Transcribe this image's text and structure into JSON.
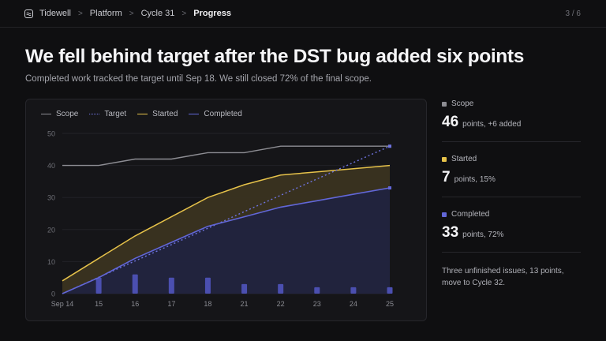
{
  "breadcrumb": {
    "app": "Tidewell",
    "items": [
      "Platform",
      "Cycle 31",
      "Progress"
    ],
    "pager": "3 / 6"
  },
  "headline": "We fell behind target after the DST bug added six points",
  "subtitle": "Completed work tracked the target until Sep 18. We still closed 72% of the final scope.",
  "colors": {
    "scope": "#8d8d93",
    "target": "#6f74e0",
    "started": "#e6c24a",
    "completed": "#6267d8",
    "started_fill": "#3a3320",
    "completed_fill": "#22243f",
    "bar": "#4b4fb0"
  },
  "legend": [
    {
      "key": "scope",
      "label": "Scope",
      "style": "solid"
    },
    {
      "key": "target",
      "label": "Target",
      "style": "dotted"
    },
    {
      "key": "started",
      "label": "Started",
      "style": "solid"
    },
    {
      "key": "completed",
      "label": "Completed",
      "style": "solid"
    }
  ],
  "chart_data": {
    "type": "area",
    "categories": [
      "Sep 14",
      "15",
      "16",
      "17",
      "18",
      "21",
      "22",
      "23",
      "24",
      "25"
    ],
    "ylim": [
      0,
      50
    ],
    "yticks": [
      0,
      10,
      20,
      30,
      40,
      50
    ],
    "grid": true,
    "legend_position": "top-left",
    "series": [
      {
        "name": "Scope",
        "key": "scope",
        "values": [
          40,
          40,
          42,
          42,
          44,
          44,
          46,
          46,
          46,
          46
        ]
      },
      {
        "name": "Target",
        "key": "target",
        "values": [
          0,
          5.1,
          10.2,
          15.3,
          20.4,
          25.6,
          30.7,
          35.8,
          40.9,
          46
        ]
      },
      {
        "name": "Started",
        "key": "started",
        "values": [
          4,
          11,
          18,
          24,
          30,
          34,
          37,
          38,
          39,
          40
        ]
      },
      {
        "name": "Completed",
        "key": "completed",
        "values": [
          0,
          5,
          11,
          16,
          21,
          24,
          27,
          29,
          31,
          33
        ]
      }
    ],
    "daily_completed": [
      0,
      5,
      6,
      5,
      5,
      3,
      3,
      2,
      2,
      2
    ]
  },
  "stats": [
    {
      "key": "scope",
      "label": "Scope",
      "value": "46",
      "unit": "points, +6 added"
    },
    {
      "key": "started",
      "label": "Started",
      "value": "7",
      "unit": "points, 15%"
    },
    {
      "key": "completed",
      "label": "Completed",
      "value": "33",
      "unit": "points, 72%"
    }
  ],
  "note": "Three unfinished issues, 13 points, move to Cycle 32."
}
